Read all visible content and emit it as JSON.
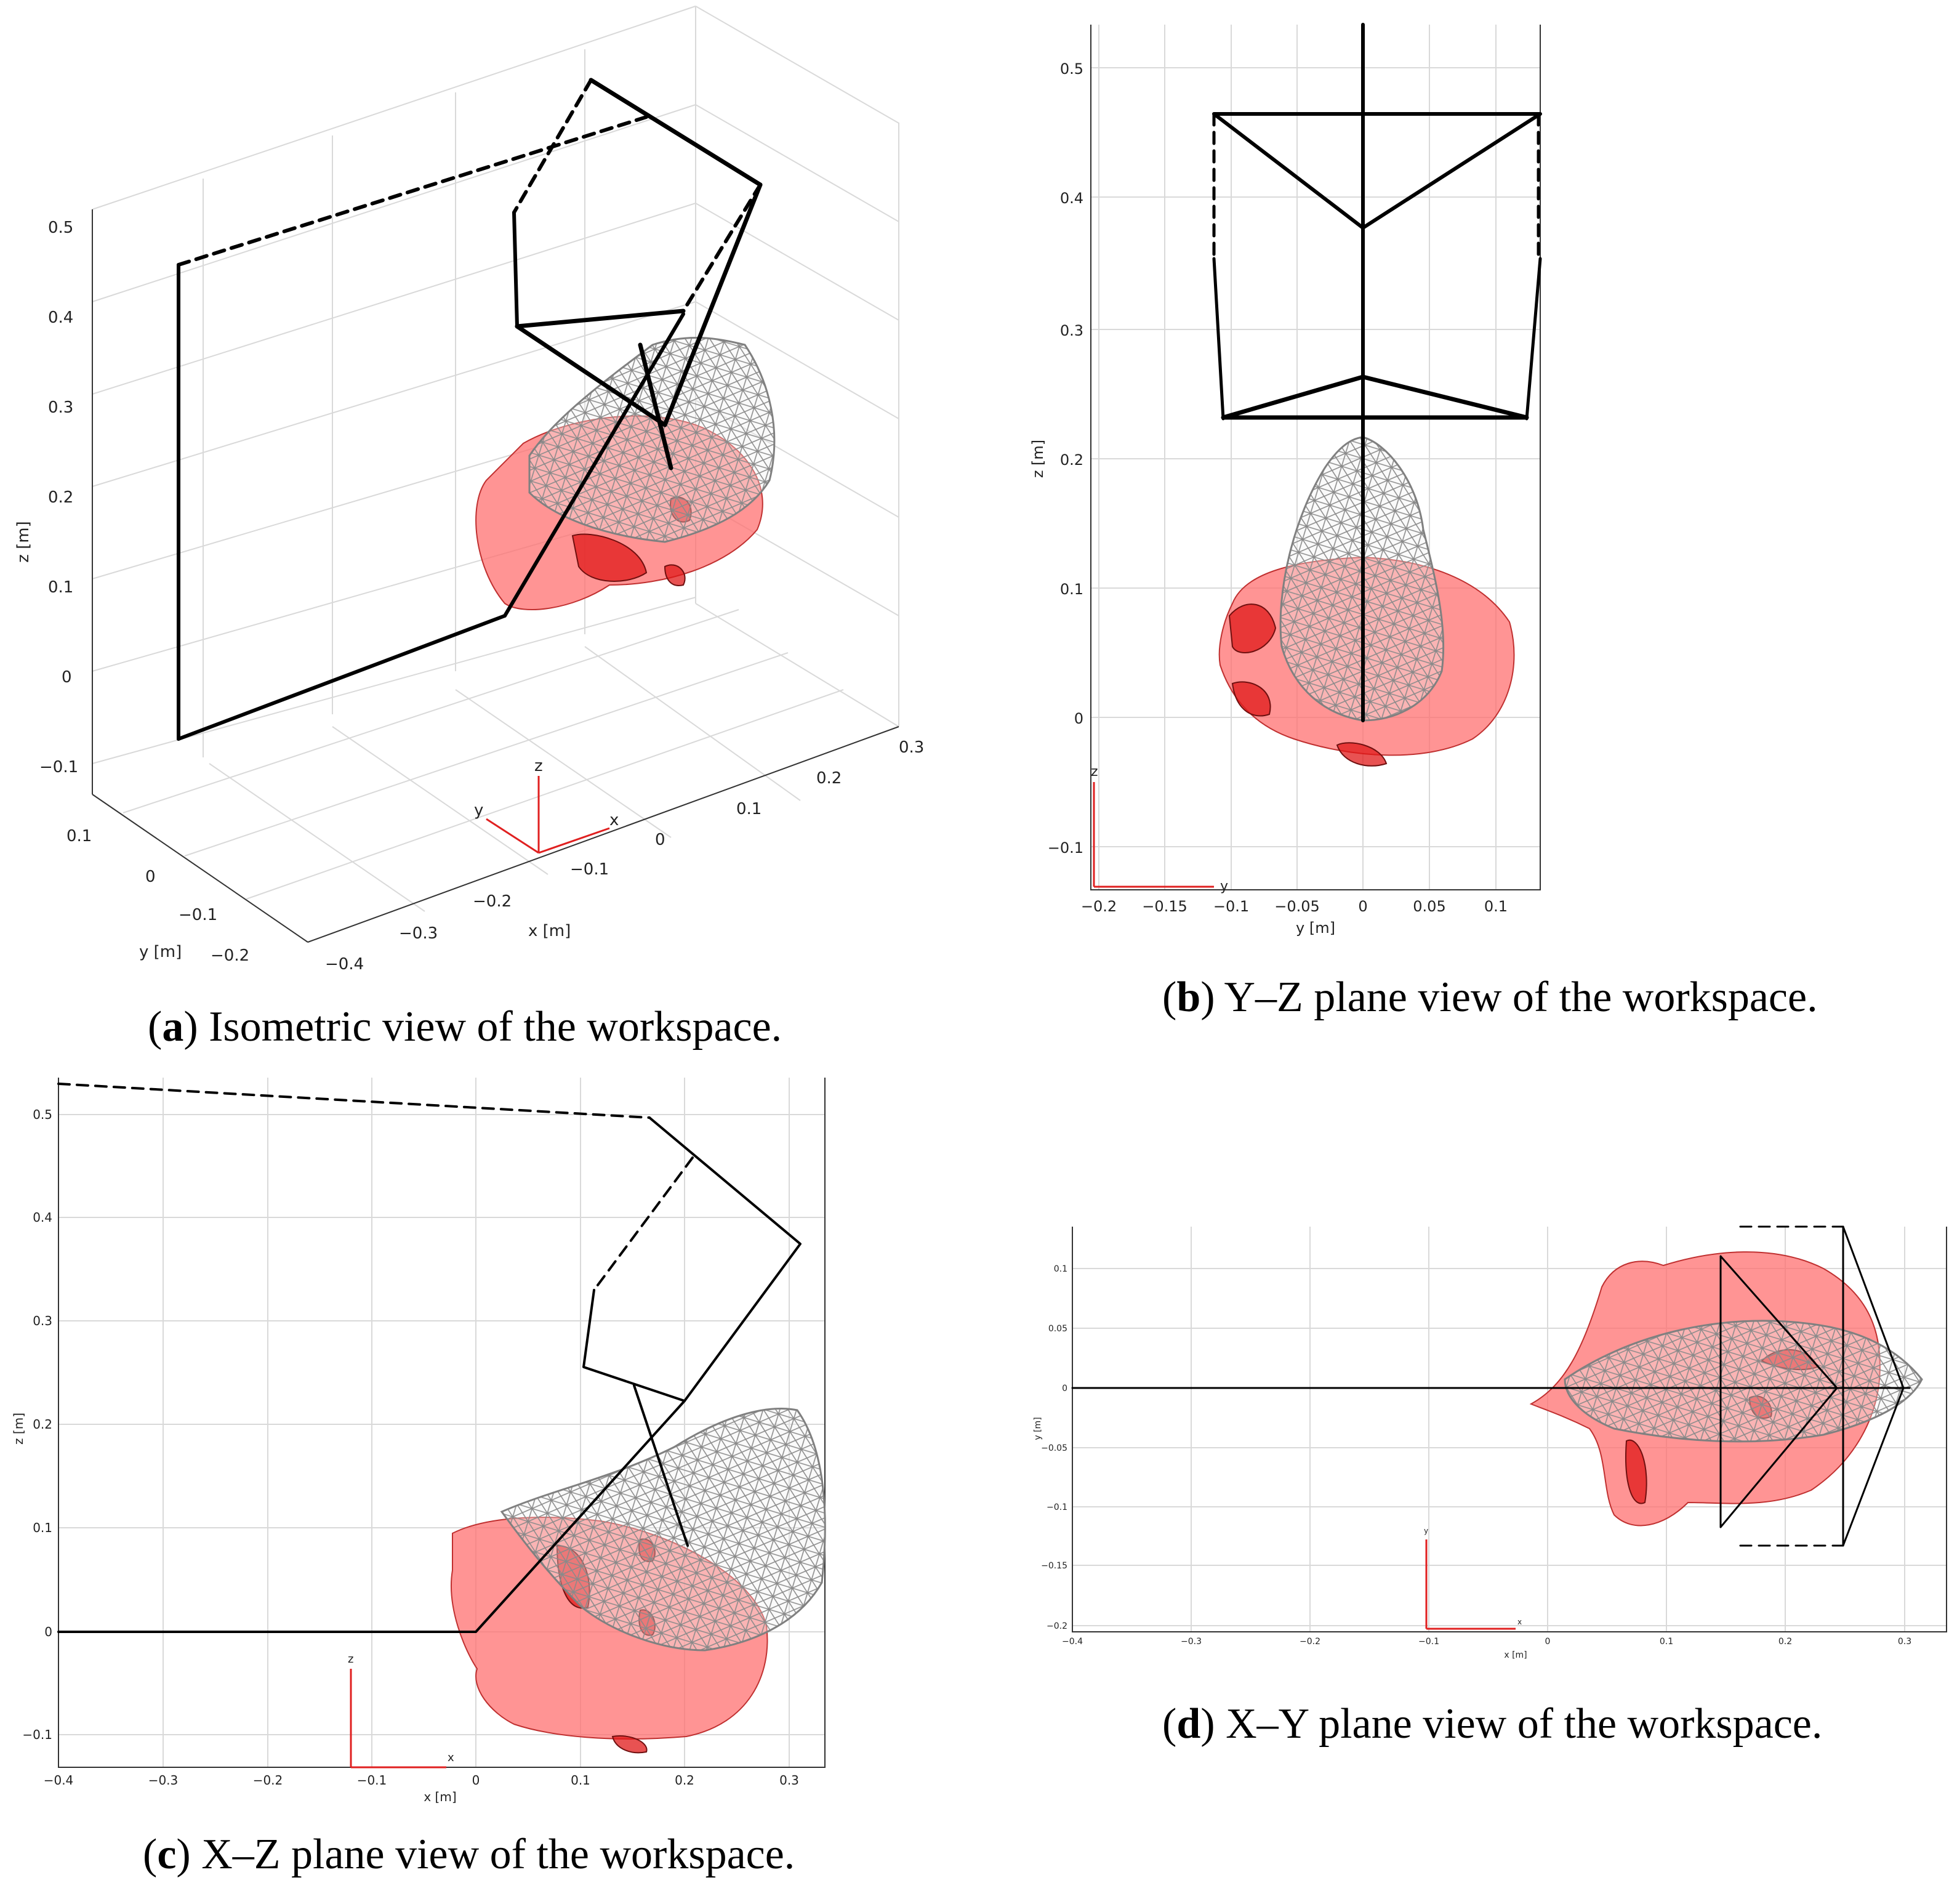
{
  "panels": {
    "a": {
      "caption_letter": "a",
      "caption_text": "Isometric view of the workspace.",
      "z_label": "z [m]",
      "y_label": "y [m]",
      "x_label": "x [m]",
      "z_ticks": [
        "0.5",
        "0.4",
        "0.3",
        "0.2",
        "0.1",
        "0",
        "−0.1"
      ],
      "y_ticks": [
        "0.1",
        "0",
        "−0.1",
        "−0.2"
      ],
      "x_ticks": [
        "−0.4",
        "−0.3",
        "−0.2",
        "−0.1",
        "0",
        "0.1",
        "0.2",
        "0.3"
      ],
      "frame_labels": [
        "z",
        "y",
        "x"
      ]
    },
    "b": {
      "caption_letter": "b",
      "caption_text": "Y–Z plane view of the workspace.",
      "z_label": "z [m]",
      "y_label": "y [m]",
      "z_ticks": [
        "0.5",
        "0.4",
        "0.3",
        "0.2",
        "0.1",
        "0",
        "−0.1"
      ],
      "y_ticks": [
        "−0.2",
        "−0.15",
        "−0.1",
        "−0.05",
        "0",
        "0.05",
        "0.1"
      ],
      "frame_labels": [
        "z",
        "y"
      ]
    },
    "c": {
      "caption_letter": "c",
      "caption_text": "X–Z plane view of the workspace.",
      "z_label": "z [m]",
      "x_label": "x [m]",
      "z_ticks": [
        "0.5",
        "0.4",
        "0.3",
        "0.2",
        "0.1",
        "0",
        "−0.1"
      ],
      "x_ticks": [
        "−0.4",
        "−0.3",
        "−0.2",
        "−0.1",
        "0",
        "0.1",
        "0.2",
        "0.3"
      ],
      "frame_labels": [
        "z",
        "x"
      ]
    },
    "d": {
      "caption_letter": "d",
      "caption_text": "X–Y plane view of the workspace.",
      "y_label": "y [m]",
      "x_label": "x [m]",
      "y_ticks": [
        "0.1",
        "0.05",
        "0",
        "−0.05",
        "−0.1",
        "−0.15",
        "−0.2"
      ],
      "x_ticks": [
        "−0.4",
        "−0.3",
        "−0.2",
        "−0.1",
        "0",
        "0.1",
        "0.2",
        "0.3"
      ],
      "frame_labels": [
        "y",
        "x"
      ]
    }
  },
  "colors": {
    "skin": "#ff6b6b",
    "skin_dark": "#e01818",
    "mesh": "#808080",
    "robot_links": "#000000",
    "coordinate_frame": "#e02020",
    "grid": "#d9d9d9"
  }
}
